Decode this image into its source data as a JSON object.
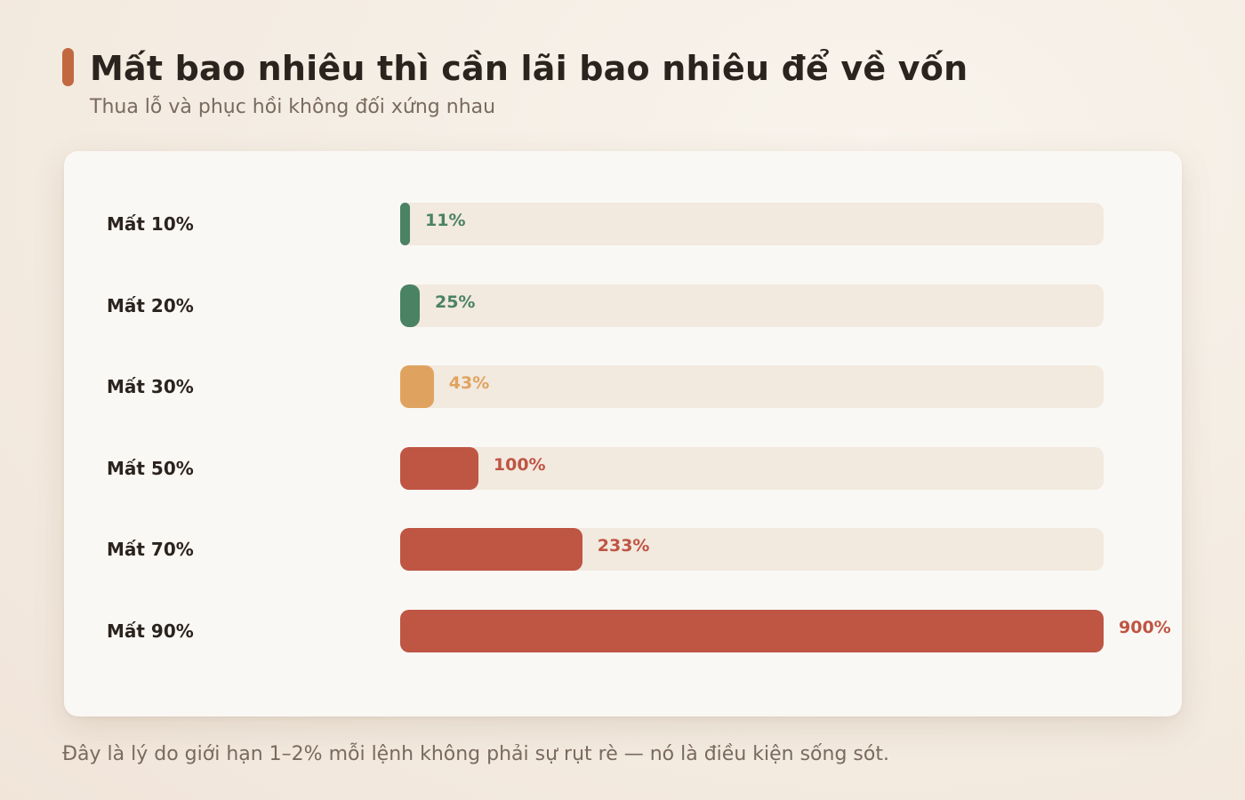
{
  "header": {
    "title": "Mất bao nhiêu thì cần lãi bao nhiêu để về vốn",
    "subtitle": "Thua lỗ và phục hồi không đối xứng nhau"
  },
  "footnote": "Đây là lý do giới hạn 1–2% mỗi lệnh không phải sự rụt rè — nó là điều kiện sống sót.",
  "colors": {
    "accent": "#c2683f",
    "green": "#4a8264",
    "amber": "#e0a35f",
    "red": "#bf5543",
    "track": "#f2e9df"
  },
  "chart_data": {
    "type": "bar",
    "orientation": "horizontal",
    "categories": [
      "Mất 10%",
      "Mất 20%",
      "Mất 30%",
      "Mất 50%",
      "Mất 70%",
      "Mất 90%"
    ],
    "series": [
      {
        "values": [
          11,
          25,
          43,
          100,
          233,
          900
        ],
        "labels": [
          "11%",
          "25%",
          "43%",
          "100%",
          "233%",
          "900%"
        ],
        "colors": [
          "#4a8264",
          "#4a8264",
          "#e0a35f",
          "#bf5543",
          "#bf5543",
          "#bf5543"
        ]
      }
    ],
    "xlim": [
      0,
      900
    ],
    "grid": false,
    "legend": "none"
  }
}
